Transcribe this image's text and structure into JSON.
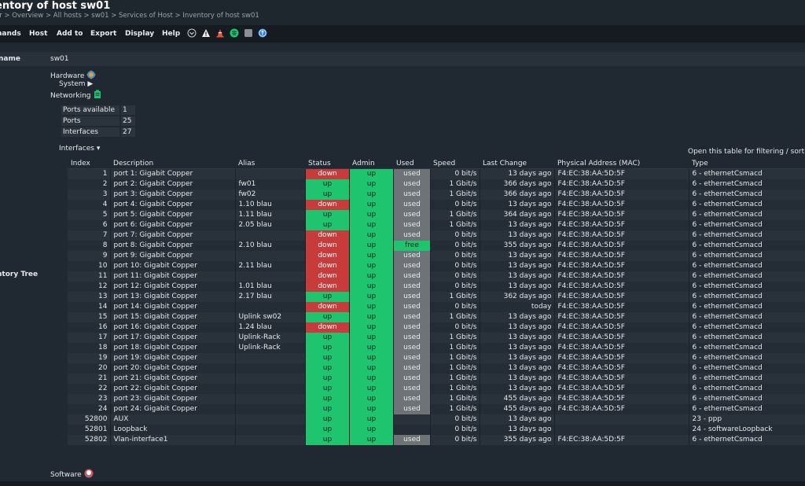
{
  "title": "entory of host sw01",
  "breadcrumb": "or > Overview > All hosts > sw01 > Services of Host > Inventory of host sw01",
  "menu": {
    "commands": "nands",
    "host": "Host",
    "add_to": "Add to",
    "export": "Export",
    "display": "Display",
    "help": "Help"
  },
  "name_label": "name",
  "host_name": "sw01",
  "tree_label": "ntory Tree",
  "tree": {
    "hardware": "Hardware",
    "system": "System ▶",
    "networking": "Networking",
    "interfaces": "Interfaces ▾",
    "software": "Software"
  },
  "filter_hint": "Open this table for filtering / sorting",
  "ports": [
    {
      "label": "Ports available",
      "value": "1"
    },
    {
      "label": "Ports",
      "value": "25"
    },
    {
      "label": "Interfaces",
      "value": "27"
    }
  ],
  "columns": [
    "Index",
    "Description",
    "Alias",
    "Status",
    "Admin",
    "Used",
    "Speed",
    "Last Change",
    "Physical Address (MAC)",
    "Type"
  ],
  "colors": {
    "down": "#c83b3b",
    "up": "#1ec46e",
    "used": "#6e7378",
    "free": "#1ec46e"
  },
  "interfaces": [
    {
      "index": "1",
      "description": "port 1: Gigabit Copper",
      "alias": "",
      "status": "down",
      "admin": "up",
      "used": "used",
      "speed": "0 bit/s",
      "last_change": "13 days ago",
      "mac": "F4:EC:38:AA:5D:5F",
      "type": "6 - ethernetCsmacd"
    },
    {
      "index": "2",
      "description": "port 2: Gigabit Copper",
      "alias": "fw01",
      "status": "up",
      "admin": "up",
      "used": "used",
      "speed": "1 Gbit/s",
      "last_change": "366 days ago",
      "mac": "F4:EC:38:AA:5D:5F",
      "type": "6 - ethernetCsmacd"
    },
    {
      "index": "3",
      "description": "port 3: Gigabit Copper",
      "alias": "fw02",
      "status": "up",
      "admin": "up",
      "used": "used",
      "speed": "1 Gbit/s",
      "last_change": "366 days ago",
      "mac": "F4:EC:38:AA:5D:5F",
      "type": "6 - ethernetCsmacd"
    },
    {
      "index": "4",
      "description": "port 4: Gigabit Copper",
      "alias": "1.10 blau",
      "status": "down",
      "admin": "up",
      "used": "used",
      "speed": "0 bit/s",
      "last_change": "13 days ago",
      "mac": "F4:EC:38:AA:5D:5F",
      "type": "6 - ethernetCsmacd"
    },
    {
      "index": "5",
      "description": "port 5: Gigabit Copper",
      "alias": "1.11 blau",
      "status": "up",
      "admin": "up",
      "used": "used",
      "speed": "1 Gbit/s",
      "last_change": "364 days ago",
      "mac": "F4:EC:38:AA:5D:5F",
      "type": "6 - ethernetCsmacd"
    },
    {
      "index": "6",
      "description": "port 6: Gigabit Copper",
      "alias": "2.05 blau",
      "status": "up",
      "admin": "up",
      "used": "used",
      "speed": "1 Gbit/s",
      "last_change": "13 days ago",
      "mac": "F4:EC:38:AA:5D:5F",
      "type": "6 - ethernetCsmacd"
    },
    {
      "index": "7",
      "description": "port 7: Gigabit Copper",
      "alias": "",
      "status": "down",
      "admin": "up",
      "used": "used",
      "speed": "0 bit/s",
      "last_change": "13 days ago",
      "mac": "F4:EC:38:AA:5D:5F",
      "type": "6 - ethernetCsmacd"
    },
    {
      "index": "8",
      "description": "port 8: Gigabit Copper",
      "alias": "2.10 blau",
      "status": "down",
      "admin": "up",
      "used": "free",
      "speed": "0 bit/s",
      "last_change": "355 days ago",
      "mac": "F4:EC:38:AA:5D:5F",
      "type": "6 - ethernetCsmacd"
    },
    {
      "index": "9",
      "description": "port 9: Gigabit Copper",
      "alias": "",
      "status": "down",
      "admin": "up",
      "used": "used",
      "speed": "0 bit/s",
      "last_change": "13 days ago",
      "mac": "F4:EC:38:AA:5D:5F",
      "type": "6 - ethernetCsmacd"
    },
    {
      "index": "10",
      "description": "port 10: Gigabit Copper",
      "alias": "2.11 blau",
      "status": "down",
      "admin": "up",
      "used": "used",
      "speed": "0 bit/s",
      "last_change": "13 days ago",
      "mac": "F4:EC:38:AA:5D:5F",
      "type": "6 - ethernetCsmacd"
    },
    {
      "index": "11",
      "description": "port 11: Gigabit Copper",
      "alias": "",
      "status": "down",
      "admin": "up",
      "used": "used",
      "speed": "0 bit/s",
      "last_change": "13 days ago",
      "mac": "F4:EC:38:AA:5D:5F",
      "type": "6 - ethernetCsmacd"
    },
    {
      "index": "12",
      "description": "port 12: Gigabit Copper",
      "alias": "1.01 blau",
      "status": "down",
      "admin": "up",
      "used": "used",
      "speed": "0 bit/s",
      "last_change": "13 days ago",
      "mac": "F4:EC:38:AA:5D:5F",
      "type": "6 - ethernetCsmacd"
    },
    {
      "index": "13",
      "description": "port 13: Gigabit Copper",
      "alias": "2.17 blau",
      "status": "up",
      "admin": "up",
      "used": "used",
      "speed": "1 Gbit/s",
      "last_change": "362 days ago",
      "mac": "F4:EC:38:AA:5D:5F",
      "type": "6 - ethernetCsmacd"
    },
    {
      "index": "14",
      "description": "port 14: Gigabit Copper",
      "alias": "",
      "status": "down",
      "admin": "up",
      "used": "used",
      "speed": "0 bit/s",
      "last_change": "today",
      "mac": "F4:EC:38:AA:5D:5F",
      "type": "6 - ethernetCsmacd"
    },
    {
      "index": "15",
      "description": "port 15: Gigabit Copper",
      "alias": "Uplink sw02",
      "status": "up",
      "admin": "up",
      "used": "used",
      "speed": "1 Gbit/s",
      "last_change": "13 days ago",
      "mac": "F4:EC:38:AA:5D:5F",
      "type": "6 - ethernetCsmacd"
    },
    {
      "index": "16",
      "description": "port 16: Gigabit Copper",
      "alias": "1.24 blau",
      "status": "down",
      "admin": "up",
      "used": "used",
      "speed": "0 bit/s",
      "last_change": "13 days ago",
      "mac": "F4:EC:38:AA:5D:5F",
      "type": "6 - ethernetCsmacd"
    },
    {
      "index": "17",
      "description": "port 17: Gigabit Copper",
      "alias": "Uplink-Rack",
      "status": "up",
      "admin": "up",
      "used": "used",
      "speed": "1 Gbit/s",
      "last_change": "13 days ago",
      "mac": "F4:EC:38:AA:5D:5F",
      "type": "6 - ethernetCsmacd"
    },
    {
      "index": "18",
      "description": "port 18: Gigabit Copper",
      "alias": "Uplink-Rack",
      "status": "up",
      "admin": "up",
      "used": "used",
      "speed": "1 Gbit/s",
      "last_change": "13 days ago",
      "mac": "F4:EC:38:AA:5D:5F",
      "type": "6 - ethernetCsmacd"
    },
    {
      "index": "19",
      "description": "port 19: Gigabit Copper",
      "alias": "",
      "status": "up",
      "admin": "up",
      "used": "used",
      "speed": "1 Gbit/s",
      "last_change": "13 days ago",
      "mac": "F4:EC:38:AA:5D:5F",
      "type": "6 - ethernetCsmacd"
    },
    {
      "index": "20",
      "description": "port 20: Gigabit Copper",
      "alias": "",
      "status": "up",
      "admin": "up",
      "used": "used",
      "speed": "1 Gbit/s",
      "last_change": "13 days ago",
      "mac": "F4:EC:38:AA:5D:5F",
      "type": "6 - ethernetCsmacd"
    },
    {
      "index": "21",
      "description": "port 21: Gigabit Copper",
      "alias": "",
      "status": "up",
      "admin": "up",
      "used": "used",
      "speed": "1 Gbit/s",
      "last_change": "13 days ago",
      "mac": "F4:EC:38:AA:5D:5F",
      "type": "6 - ethernetCsmacd"
    },
    {
      "index": "22",
      "description": "port 22: Gigabit Copper",
      "alias": "",
      "status": "up",
      "admin": "up",
      "used": "used",
      "speed": "1 Gbit/s",
      "last_change": "13 days ago",
      "mac": "F4:EC:38:AA:5D:5F",
      "type": "6 - ethernetCsmacd"
    },
    {
      "index": "23",
      "description": "port 23: Gigabit Copper",
      "alias": "",
      "status": "up",
      "admin": "up",
      "used": "used",
      "speed": "1 Gbit/s",
      "last_change": "455 days ago",
      "mac": "F4:EC:38:AA:5D:5F",
      "type": "6 - ethernetCsmacd"
    },
    {
      "index": "24",
      "description": "port 24: Gigabit Copper",
      "alias": "",
      "status": "up",
      "admin": "up",
      "used": "used",
      "speed": "1 Gbit/s",
      "last_change": "455 days ago",
      "mac": "F4:EC:38:AA:5D:5F",
      "type": "6 - ethernetCsmacd"
    },
    {
      "index": "52800",
      "description": "AUX",
      "alias": "",
      "status": "up",
      "admin": "up",
      "used": "",
      "speed": "0 bit/s",
      "last_change": "13 days ago",
      "mac": "",
      "type": "23 - ppp"
    },
    {
      "index": "52801",
      "description": "Loopback",
      "alias": "",
      "status": "up",
      "admin": "up",
      "used": "",
      "speed": "0 bit/s",
      "last_change": "13 days ago",
      "mac": "",
      "type": "24 - softwareLoopback"
    },
    {
      "index": "52802",
      "description": "Vlan-interface1",
      "alias": "",
      "status": "up",
      "admin": "up",
      "used": "used",
      "speed": "0 bit/s",
      "last_change": "355 days ago",
      "mac": "F4:EC:38:AA:5D:5F",
      "type": "6 - ethernetCsmacd"
    }
  ]
}
